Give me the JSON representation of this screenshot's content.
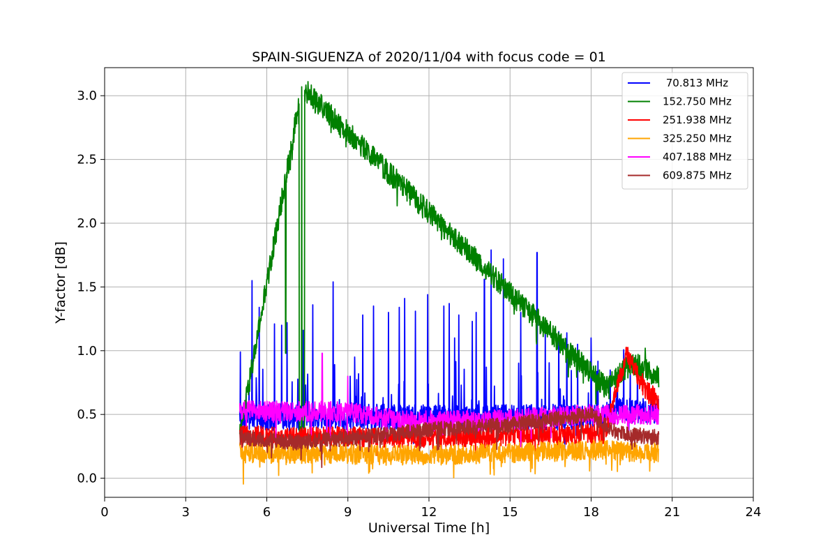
{
  "chart_data": {
    "type": "line",
    "title": "SPAIN-SIGUENZA of 2020/11/04 with focus code = 01",
    "xlabel": "Universal Time [h]",
    "ylabel": "Y-factor [dB]",
    "xlim": [
      0,
      24
    ],
    "ylim": [
      -0.15,
      3.22
    ],
    "xticks": [
      0,
      3,
      6,
      9,
      12,
      15,
      18,
      21,
      24
    ],
    "yticks": [
      0.0,
      0.5,
      1.0,
      1.5,
      2.0,
      2.5,
      3.0
    ],
    "xtick_labels": [
      "0",
      "3",
      "6",
      "9",
      "12",
      "15",
      "18",
      "21",
      "24"
    ],
    "ytick_labels": [
      "0.0",
      "0.5",
      "1.0",
      "1.5",
      "2.0",
      "2.5",
      "3.0"
    ],
    "grid": true,
    "legend_position": "top-right",
    "x_range_of_data": [
      5.0,
      20.5
    ],
    "series": [
      {
        "name": " 70.813 MHz",
        "color": "#0000ff",
        "baseline": 0.48,
        "noise": 0.1,
        "x": [
          5.0,
          5.5,
          5.8,
          6.3,
          6.8,
          7.0,
          7.2,
          7.7,
          8.5,
          9.0,
          9.5,
          10.0,
          10.5,
          11.0,
          11.5,
          12.0,
          12.5,
          13.0,
          13.5,
          14.0,
          14.3,
          14.8,
          15.0,
          16.0,
          16.5,
          17.0,
          17.5,
          18.0,
          18.5,
          19.0,
          19.5,
          20.0,
          20.5
        ],
        "y": [
          1.0,
          1.55,
          1.34,
          1.21,
          1.22,
          1.18,
          0.9,
          1.37,
          1.54,
          0.9,
          1.28,
          1.36,
          1.41,
          1.33,
          1.44,
          1.36,
          1.28,
          1.38,
          1.3,
          1.56,
          1.79,
          1.73,
          1.15,
          1.77,
          1.26,
          1.2,
          1.13,
          1.12,
          0.8,
          0.72,
          0.75,
          0.7,
          0.45
        ],
        "spikes": [
          [
            5.02,
            0.99
          ],
          [
            5.45,
            1.55
          ],
          [
            5.72,
            1.34
          ],
          [
            6.28,
            1.21
          ],
          [
            6.55,
            1.2
          ],
          [
            6.75,
            1.22
          ],
          [
            7.35,
            1.16
          ],
          [
            7.7,
            1.36
          ],
          [
            8.45,
            1.54
          ],
          [
            9.25,
            0.95
          ],
          [
            9.55,
            1.28
          ],
          [
            9.95,
            1.35
          ],
          [
            10.5,
            1.3
          ],
          [
            10.9,
            1.34
          ],
          [
            11.1,
            1.41
          ],
          [
            11.5,
            1.31
          ],
          [
            11.95,
            1.44
          ],
          [
            12.55,
            1.35
          ],
          [
            12.75,
            1.37
          ],
          [
            12.95,
            1.1
          ],
          [
            13.1,
            1.28
          ],
          [
            13.6,
            1.23
          ],
          [
            13.75,
            1.3
          ],
          [
            14.05,
            1.56
          ],
          [
            14.3,
            1.79
          ],
          [
            14.75,
            1.72
          ],
          [
            15.4,
            1.3
          ],
          [
            16.0,
            1.77
          ],
          [
            16.3,
            1.16
          ],
          [
            16.8,
            1.15
          ],
          [
            17.1,
            1.14
          ],
          [
            17.5,
            1.05
          ],
          [
            18.0,
            1.1
          ]
        ]
      },
      {
        "name": "152.750 MHz",
        "color": "#008000",
        "baseline": 0.34,
        "noise": 0.09,
        "x": [
          5.0,
          7.3,
          18.5,
          19.0,
          19.5,
          20.0,
          20.5
        ],
        "y": [
          0.33,
          3.07,
          0.72,
          0.8,
          0.9,
          0.86,
          0.78
        ],
        "spikes": [
          [
            7.29,
            3.07
          ],
          [
            6.7,
            0.98
          ],
          [
            19.35,
            1.01
          ],
          [
            20.0,
            1.02
          ]
        ]
      },
      {
        "name": "251.938 MHz",
        "color": "#ff0000",
        "baseline": 0.33,
        "noise": 0.08,
        "x": [
          5.0,
          12.0,
          18.5,
          19.3,
          20.0,
          20.5
        ],
        "y": [
          0.33,
          0.32,
          0.35,
          0.97,
          0.7,
          0.6
        ],
        "spikes": [
          [
            19.3,
            0.97
          ],
          [
            19.9,
            0.82
          ]
        ]
      },
      {
        "name": "325.250 MHz",
        "color": "#ffa500",
        "baseline": 0.2,
        "noise": 0.08,
        "x": [
          5.0,
          12.0,
          18.0,
          20.5
        ],
        "y": [
          0.2,
          0.18,
          0.22,
          0.2
        ],
        "spikes": []
      },
      {
        "name": "407.188 MHz",
        "color": "#ff00ff",
        "baseline": 0.53,
        "noise": 0.08,
        "x": [
          5.0,
          9.0,
          11.0,
          14.0,
          18.0,
          20.5
        ],
        "y": [
          0.53,
          0.52,
          0.45,
          0.45,
          0.5,
          0.5
        ],
        "spikes": [
          [
            8.05,
            0.98
          ],
          [
            9.0,
            0.8
          ]
        ]
      },
      {
        "name": "609.875 MHz",
        "color": "#a52a2a",
        "baseline": 0.3,
        "noise": 0.06,
        "x": [
          5.0,
          7.0,
          10.0,
          12.0,
          15.0,
          18.0,
          19.0,
          20.5
        ],
        "y": [
          0.32,
          0.28,
          0.33,
          0.38,
          0.42,
          0.5,
          0.35,
          0.32
        ],
        "spikes": []
      }
    ]
  }
}
